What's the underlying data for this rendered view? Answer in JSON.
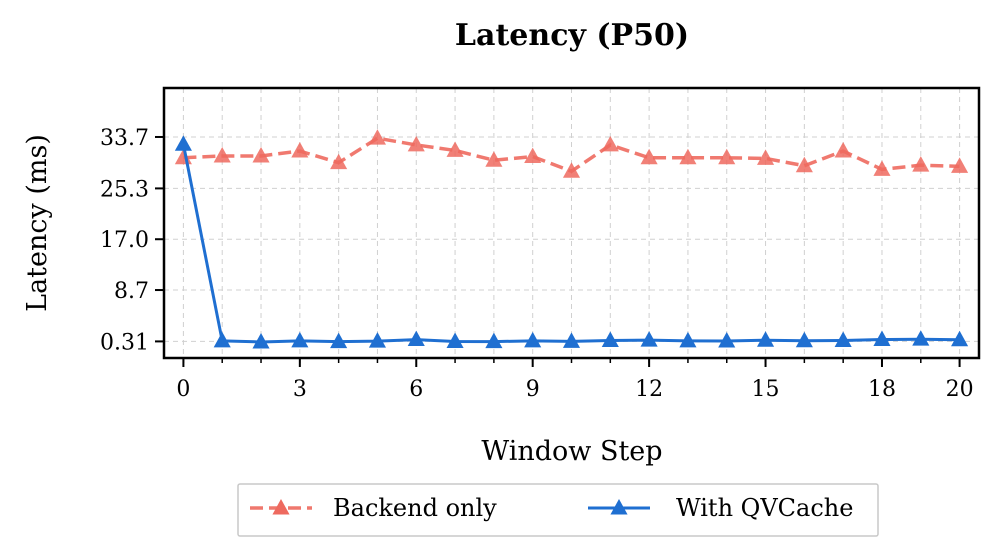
{
  "chart_data": {
    "type": "line",
    "title": "Latency (P50)",
    "xlabel": "Window Step",
    "ylabel": "Latency (ms)",
    "x": [
      0,
      1,
      2,
      3,
      4,
      5,
      6,
      7,
      8,
      9,
      10,
      11,
      12,
      13,
      14,
      15,
      16,
      17,
      18,
      19,
      20
    ],
    "xticks": [
      0,
      3,
      6,
      9,
      12,
      15,
      18,
      20
    ],
    "xtick_labels": [
      "0",
      "3",
      "6",
      "9",
      "12",
      "15",
      "18",
      "20"
    ],
    "xlim": [
      -0.5,
      20.5
    ],
    "yticks": [
      0.31,
      8.7,
      17.0,
      25.3,
      33.7
    ],
    "ytick_labels": [
      "0.31",
      "8.7",
      "17.0",
      "25.3",
      "33.7"
    ],
    "ylim": [
      -2.4,
      41.7
    ],
    "grid": true,
    "legend_position": "bottom-center",
    "series": [
      {
        "name": "Backend only",
        "color": "#ee6a5f",
        "line_style": "dashed",
        "marker": "triangle-up",
        "values": [
          30.3,
          30.6,
          30.6,
          31.4,
          29.5,
          33.5,
          32.4,
          31.5,
          29.9,
          30.5,
          28.1,
          32.4,
          30.3,
          30.3,
          30.3,
          30.2,
          29.0,
          31.4,
          28.4,
          29.1,
          28.9
        ]
      },
      {
        "name": "With QVCache",
        "color": "#1f6fd1",
        "line_style": "solid",
        "marker": "triangle-up",
        "values": [
          32.5,
          0.4,
          0.22,
          0.4,
          0.28,
          0.35,
          0.61,
          0.3,
          0.28,
          0.4,
          0.32,
          0.45,
          0.52,
          0.4,
          0.38,
          0.5,
          0.42,
          0.45,
          0.62,
          0.67,
          0.58
        ]
      }
    ]
  }
}
